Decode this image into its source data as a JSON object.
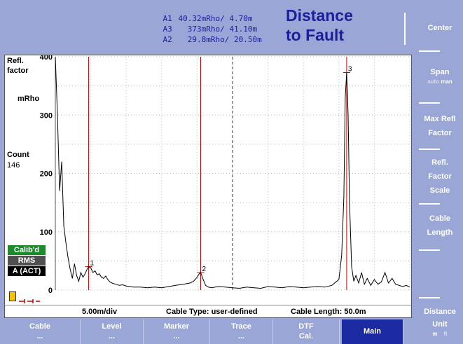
{
  "header": {
    "markers": [
      {
        "id": "A1",
        "value": "40.32mRho/ 4.70m"
      },
      {
        "id": "A3",
        "value": "  373mRho/ 41.10m"
      },
      {
        "id": "A2",
        "value": "  29.8mRho/ 20.50m"
      }
    ],
    "title_line1": "Distance",
    "title_line2": "to Fault"
  },
  "plot": {
    "ylabel1": "Refl.",
    "ylabel2": "factor",
    "yunit": "mRho",
    "count_label": "Count",
    "count_value": "146",
    "badges": [
      {
        "text": "Calib'd",
        "color": "#1a8c2a"
      },
      {
        "text": "RMS",
        "color": "#505050"
      },
      {
        "text": "A (ACT)",
        "color": "#000000"
      }
    ],
    "status": {
      "scale": "5.00m/div",
      "cable_type": "Cable Type: user-defined",
      "cable_length": "Cable Length:  50.0m"
    }
  },
  "chart_data": {
    "type": "line",
    "ylim": [
      0,
      400
    ],
    "xlim": [
      0,
      50
    ],
    "yticks": [
      "400",
      "300",
      "200",
      "100",
      "0"
    ],
    "grid": true,
    "markers": [
      {
        "label": "1",
        "x": 4.7,
        "y": 40.32
      },
      {
        "label": "2",
        "x": 20.5,
        "y": 29.8
      },
      {
        "label": "3",
        "x": 41.1,
        "y": 373
      }
    ],
    "series": [
      {
        "x": [
          0,
          0.3,
          0.6,
          0.9,
          1.2,
          1.5,
          1.8,
          2.1,
          2.4,
          2.7,
          3.0,
          3.3,
          3.6,
          3.9,
          4.2,
          4.5,
          4.7,
          5.0,
          5.3,
          5.6,
          5.9,
          6.2,
          6.5,
          6.8,
          7.1,
          7.4,
          7.7,
          8.0,
          8.5,
          9.0,
          9.5,
          10,
          10.5,
          11,
          12,
          13,
          14,
          15,
          16,
          17,
          18,
          19,
          19.5,
          20,
          20.3,
          20.5,
          20.8,
          21.2,
          21.6,
          22,
          23,
          24,
          25,
          26,
          27,
          28,
          29,
          30,
          31,
          32,
          33,
          34,
          35,
          36,
          37,
          38,
          39,
          40,
          40.4,
          40.7,
          40.9,
          41.1,
          41.3,
          41.5,
          41.8,
          42.1,
          42.4,
          42.8,
          43.2,
          43.6,
          44,
          44.5,
          45,
          45.5,
          46,
          46.5,
          47,
          47.5,
          48,
          48.5,
          49,
          49.5,
          50
        ],
        "values": [
          400,
          300,
          170,
          220,
          110,
          80,
          55,
          35,
          20,
          45,
          25,
          15,
          30,
          22,
          28,
          36,
          40,
          38,
          30,
          33,
          26,
          28,
          22,
          20,
          24,
          18,
          14,
          12,
          10,
          8,
          9,
          7,
          6,
          5,
          5,
          4,
          5,
          4,
          6,
          8,
          10,
          12,
          15,
          22,
          28,
          30,
          20,
          8,
          5,
          4,
          6,
          5,
          4,
          3,
          5,
          4,
          3,
          6,
          5,
          4,
          6,
          5,
          4,
          5,
          6,
          5,
          8,
          18,
          60,
          160,
          330,
          373,
          300,
          150,
          40,
          15,
          25,
          12,
          30,
          10,
          20,
          8,
          18,
          10,
          14,
          30,
          12,
          20,
          10,
          8,
          6,
          8,
          5
        ]
      }
    ]
  },
  "softkeys": {
    "center": "Center",
    "span": "Span",
    "span_auto": "auto",
    "span_man": "man",
    "max_refl1": "Max Refl",
    "max_refl2": "Factor",
    "refl_scale1": "Refl.",
    "refl_scale2": "Factor",
    "refl_scale3": "Scale",
    "cable_length1": "Cable",
    "cable_length2": "Length",
    "dist_unit1": "Distance",
    "dist_unit2": "Unit",
    "unit_m": "m",
    "unit_ft": "ft"
  },
  "tabs": {
    "cable": "Cable",
    "level": "Level",
    "marker": "Marker",
    "trace": "Trace",
    "dtf": "DTF",
    "dtf2": "Cal.",
    "main": "Main",
    "ellipsis": "..."
  },
  "colors": {
    "background": "#9aa6d6",
    "trace": "#000000",
    "marker_line": "#c00000",
    "active_tab": "#1a2aa0"
  }
}
